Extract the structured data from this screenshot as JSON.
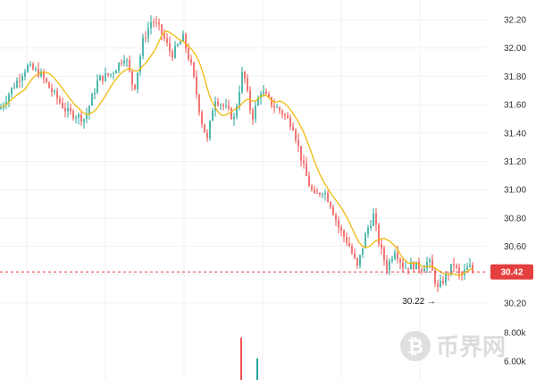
{
  "chart_data": {
    "type": "candlestick",
    "price_axis": {
      "ticks": [
        "32.20",
        "32.00",
        "31.80",
        "31.60",
        "31.40",
        "31.20",
        "31.00",
        "30.80",
        "30.60",
        "30.40",
        "30.20"
      ],
      "ylim": [
        30.13,
        32.29
      ]
    },
    "volume_axis": {
      "ticks": [
        "8.00k",
        "6.00k"
      ],
      "ylim": [
        6000,
        8000
      ]
    },
    "last_price": {
      "value": 30.42,
      "label": "30.42",
      "color": "#e53e3e"
    },
    "low_marker": {
      "value": 30.22,
      "label": "30.22 →"
    },
    "ma_color": "#f0b90b",
    "up_color": "#26a69a",
    "down_color": "#ef5350",
    "price_anchors": [
      [
        0,
        31.57
      ],
      [
        12,
        31.7
      ],
      [
        30,
        31.87
      ],
      [
        45,
        31.82
      ],
      [
        55,
        31.72
      ],
      [
        75,
        31.55
      ],
      [
        95,
        31.5
      ],
      [
        110,
        31.78
      ],
      [
        125,
        31.82
      ],
      [
        140,
        31.95
      ],
      [
        150,
        31.7
      ],
      [
        160,
        32.05
      ],
      [
        170,
        32.2
      ],
      [
        180,
        32.12
      ],
      [
        192,
        31.95
      ],
      [
        205,
        32.07
      ],
      [
        215,
        31.85
      ],
      [
        225,
        31.5
      ],
      [
        232,
        31.35
      ],
      [
        240,
        31.65
      ],
      [
        252,
        31.58
      ],
      [
        262,
        31.5
      ],
      [
        272,
        31.85
      ],
      [
        282,
        31.5
      ],
      [
        292,
        31.7
      ],
      [
        305,
        31.6
      ],
      [
        315,
        31.55
      ],
      [
        328,
        31.45
      ],
      [
        338,
        31.2
      ],
      [
        345,
        31.05
      ],
      [
        352,
        30.95
      ],
      [
        362,
        31.0
      ],
      [
        370,
        30.9
      ],
      [
        380,
        30.72
      ],
      [
        390,
        30.62
      ],
      [
        400,
        30.45
      ],
      [
        410,
        30.7
      ],
      [
        418,
        30.82
      ],
      [
        425,
        30.6
      ],
      [
        433,
        30.45
      ],
      [
        442,
        30.58
      ],
      [
        452,
        30.45
      ],
      [
        462,
        30.47
      ],
      [
        472,
        30.45
      ],
      [
        480,
        30.5
      ],
      [
        490,
        30.3
      ],
      [
        500,
        30.4
      ],
      [
        508,
        30.48
      ],
      [
        515,
        30.38
      ],
      [
        525,
        30.46
      ],
      [
        530,
        30.42
      ]
    ],
    "volume_bars": [
      {
        "x": 270,
        "value": 7650,
        "color": "#ef5350"
      },
      {
        "x": 288,
        "value": 6200,
        "color": "#26a69a"
      }
    ],
    "watermark": "币界网"
  }
}
